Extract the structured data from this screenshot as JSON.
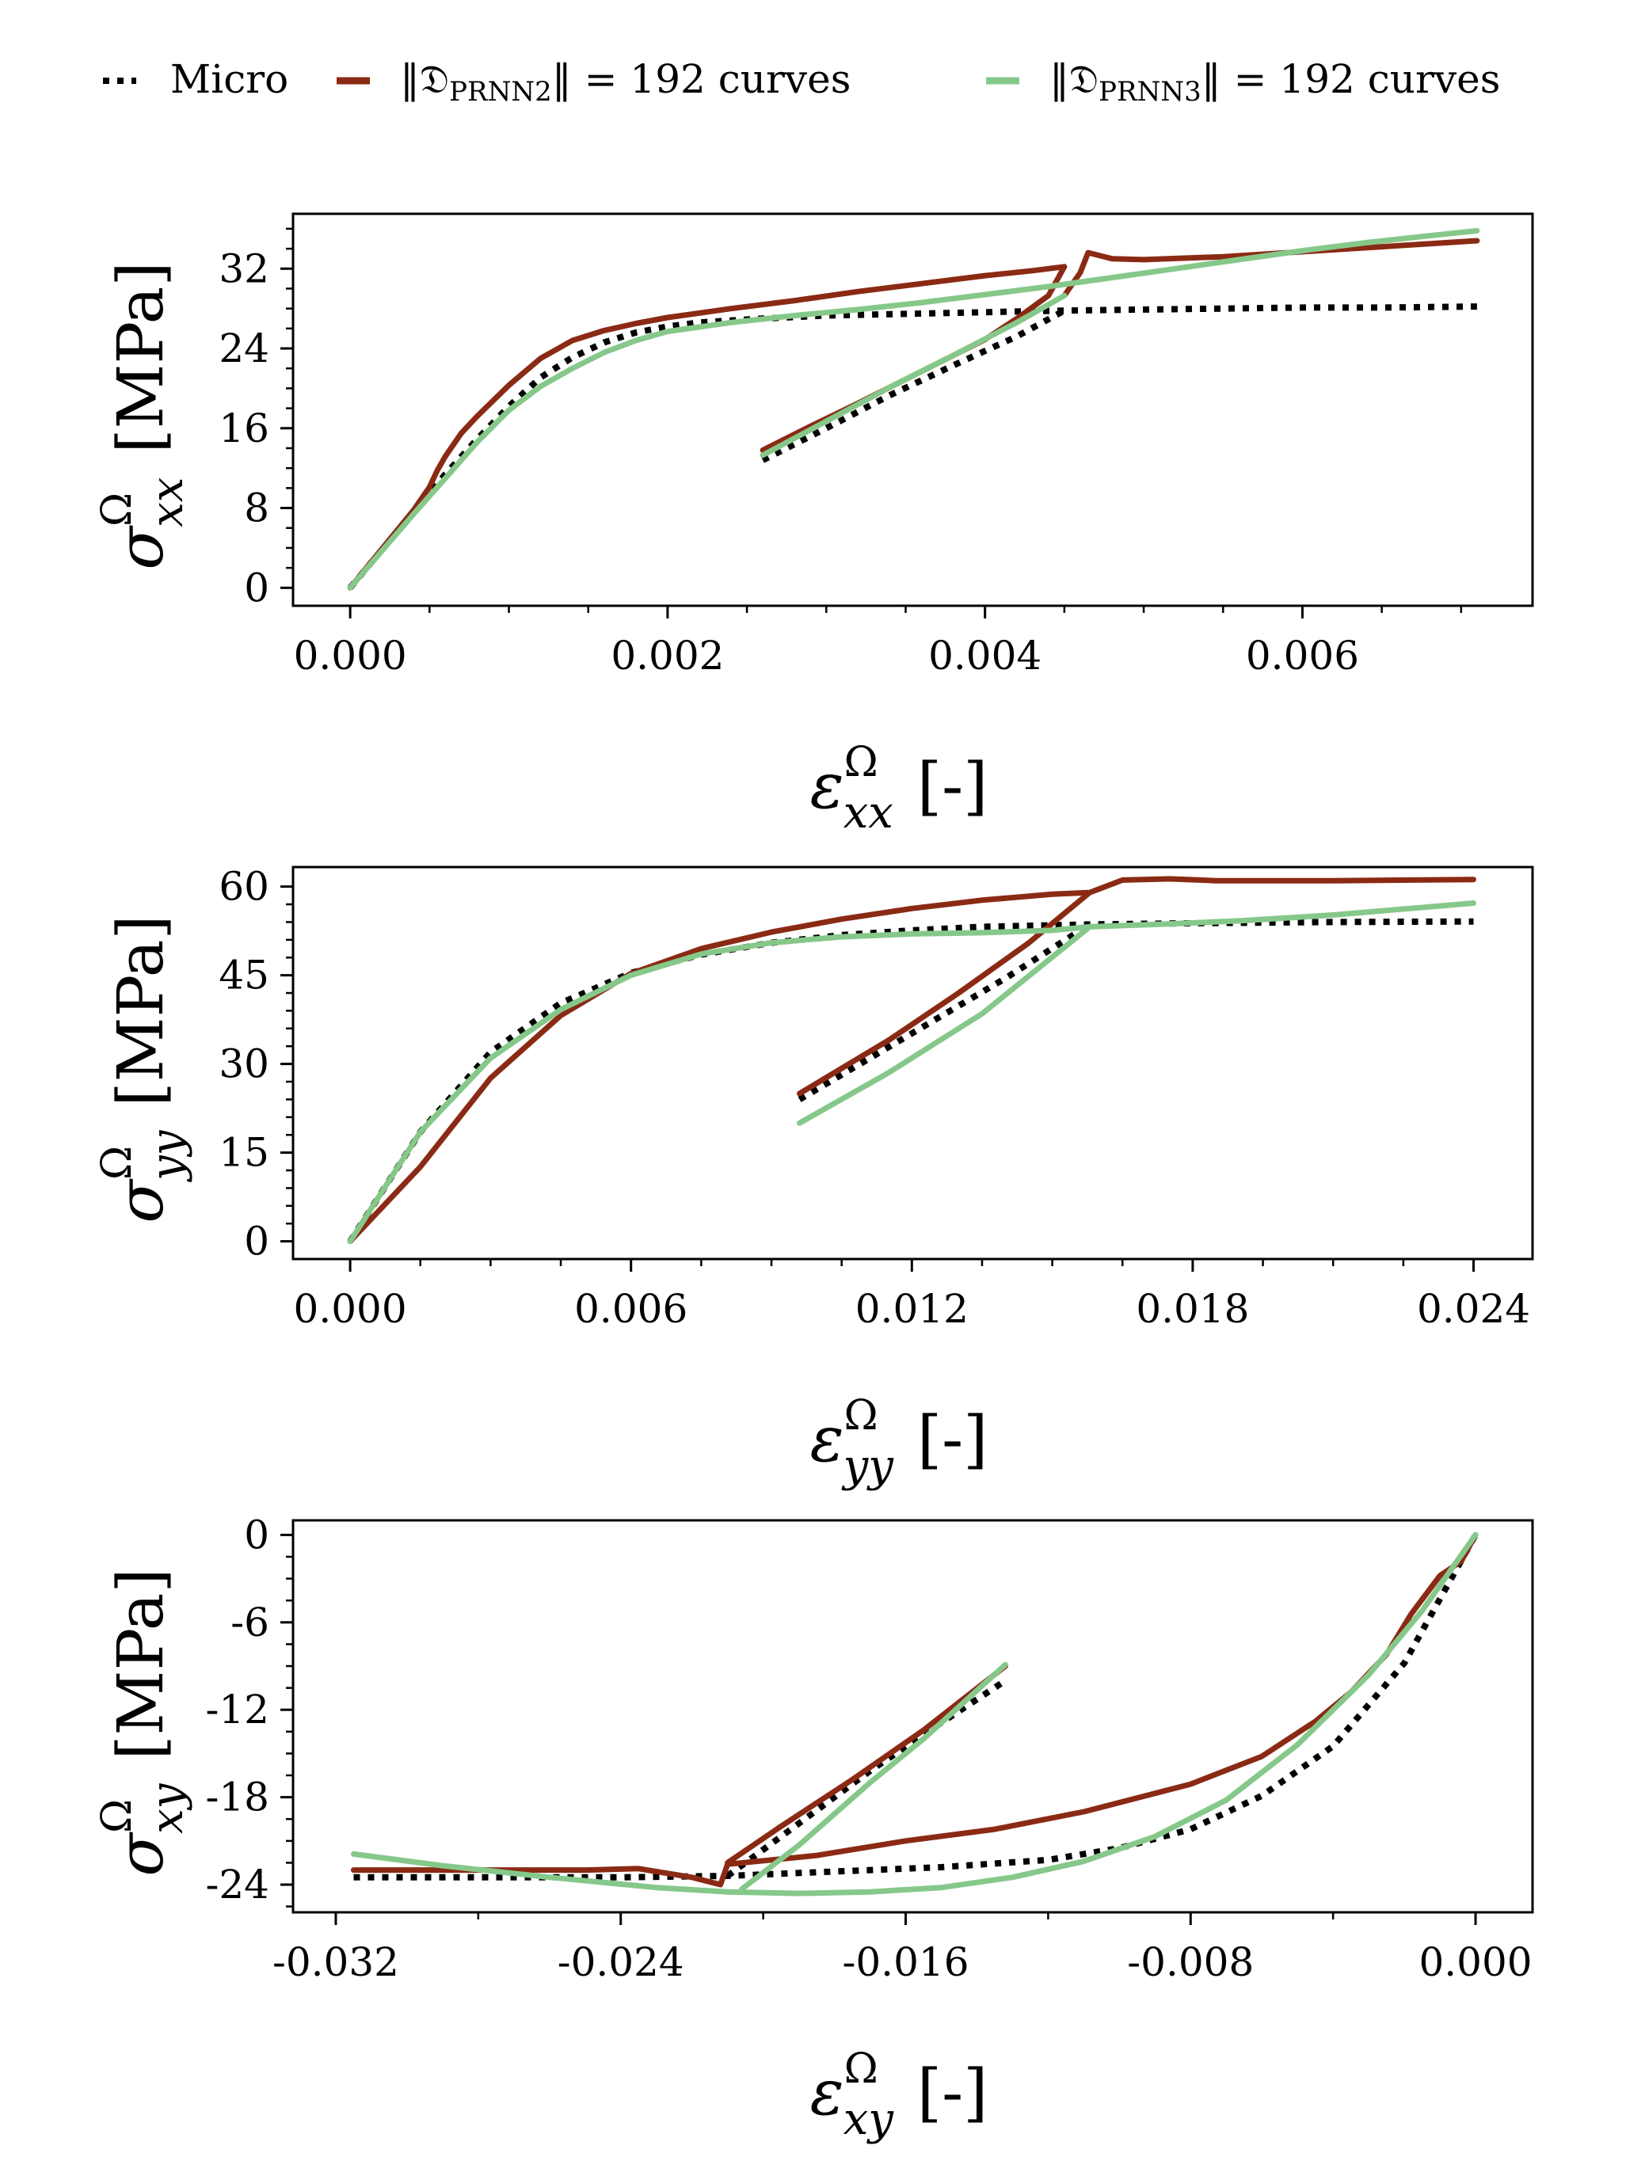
{
  "legend": {
    "entries": [
      {
        "name": "micro",
        "label": "Micro",
        "color": "#000000",
        "style": "dotted"
      },
      {
        "name": "prnn2",
        "label": "‖𝔇PRNN₂‖ = 192 curves",
        "label_main": "‖𝔇",
        "label_sub": "PRNN",
        "label_sub_index": "2",
        "label_tail": "‖ = 192 curves",
        "color": "#8B2A14",
        "style": "solid"
      },
      {
        "name": "prnn3",
        "label": "‖𝔇PRNN₃‖ = 192 curves",
        "label_main": "‖𝔇",
        "label_sub": "PRNN",
        "label_sub_index": "3",
        "label_tail": "‖ = 192 curves",
        "color": "#86C88A",
        "style": "solid"
      }
    ]
  },
  "chart_data": [
    {
      "type": "line",
      "id": "xx",
      "xlabel": "εxxΩ [-]",
      "xlabel_symbol": "ε",
      "xlabel_sub": "xx",
      "xlabel_sup": "Ω",
      "xlabel_unit": "[-]",
      "ylabel": "σxxΩ [MPa]",
      "ylabel_symbol": "σ",
      "ylabel_sub": "xx",
      "ylabel_sup": "Ω",
      "ylabel_unit": "[MPa]",
      "xlim": [
        -0.00036,
        0.00745
      ],
      "ylim": [
        -1.8,
        37.5
      ],
      "xticks": [
        0.0,
        0.002,
        0.004,
        0.006
      ],
      "xtick_labels": [
        "0.000",
        "0.002",
        "0.004",
        "0.006"
      ],
      "xminor": [
        -0.0005,
        0.0005,
        0.001,
        0.0015,
        0.0025,
        0.003,
        0.0035,
        0.0045,
        0.005,
        0.0055,
        0.0065,
        0.007
      ],
      "yticks": [
        0,
        8,
        16,
        24,
        32
      ],
      "ytick_labels": [
        "0",
        "8",
        "16",
        "24",
        "32"
      ],
      "yminor": [
        2,
        4,
        6,
        10,
        12,
        14,
        18,
        20,
        22,
        26,
        28,
        30,
        34,
        36
      ],
      "series": [
        {
          "name": "Micro",
          "legend": "micro",
          "x": [
            0,
            0.0002,
            0.0004,
            0.0006,
            0.0008,
            0.001,
            0.0012,
            0.0014,
            0.0016,
            0.0018,
            0.002,
            0.0022,
            0.0026,
            0.003,
            0.0036,
            0.0042,
            0.0045,
            0.005,
            0.0055,
            0.006,
            0.0065,
            0.0071,
            null,
            0.0026,
            0.003,
            0.0034,
            0.0038,
            0.0042,
            0.0045
          ],
          "y": [
            0,
            3.8,
            7.6,
            11.4,
            14.9,
            18.2,
            21.1,
            23.1,
            24.6,
            25.6,
            26.2,
            26.6,
            27.0,
            27.3,
            27.5,
            27.7,
            27.8,
            27.9,
            28.0,
            28.1,
            28.1,
            28.2,
            null,
            12.8,
            16.0,
            19.3,
            22.3,
            25.2,
            27.8
          ]
        },
        {
          "name": "PRNN2",
          "legend": "prnn2",
          "x": [
            0,
            0.0002,
            0.0004,
            0.0005,
            0.00055,
            0.0006,
            0.0007,
            0.0008,
            0.001,
            0.0012,
            0.0014,
            0.0016,
            0.0018,
            0.002,
            0.0024,
            0.0028,
            0.0032,
            0.0036,
            0.004,
            0.0043,
            0.0045,
            0.0044,
            0.0042,
            0.004,
            0.0036,
            0.0032,
            0.0029,
            0.0026,
            null,
            0.0045,
            0.0046,
            0.00465,
            0.0048,
            0.005,
            0.0055,
            0.006,
            0.0065,
            0.0071
          ],
          "y": [
            0,
            3.9,
            7.8,
            10.1,
            11.8,
            13.2,
            15.5,
            17.2,
            20.3,
            23.0,
            24.8,
            25.8,
            26.5,
            27.1,
            28.0,
            28.8,
            29.7,
            30.5,
            31.3,
            31.8,
            32.2,
            29.3,
            27.0,
            24.9,
            21.7,
            18.5,
            16.2,
            13.8,
            null,
            29.3,
            31.6,
            33.6,
            33.0,
            32.9,
            33.2,
            33.7,
            34.2,
            34.8
          ]
        },
        {
          "name": "PRNN3",
          "legend": "prnn3",
          "x": [
            0,
            0.0002,
            0.0004,
            0.0006,
            0.0008,
            0.001,
            0.0012,
            0.0014,
            0.0016,
            0.0018,
            0.002,
            0.0024,
            0.0028,
            0.0032,
            0.0036,
            0.004,
            0.0044,
            0.0048,
            0.0052,
            0.0056,
            0.006,
            0.0064,
            0.0068,
            0.0071,
            null,
            0.0026,
            0.003,
            0.0034,
            0.0038,
            0.0042,
            0.0045
          ],
          "y": [
            0,
            3.7,
            7.4,
            11.0,
            14.6,
            17.8,
            20.2,
            22.0,
            23.6,
            24.8,
            25.7,
            26.6,
            27.3,
            27.9,
            28.6,
            29.4,
            30.2,
            31.1,
            32.0,
            32.9,
            33.8,
            34.6,
            35.3,
            35.8,
            null,
            13.3,
            16.7,
            20.1,
            23.3,
            26.6,
            29.3
          ]
        }
      ]
    },
    {
      "type": "line",
      "id": "yy",
      "xlabel": "εyyΩ [-]",
      "xlabel_symbol": "ε",
      "xlabel_sub": "yy",
      "xlabel_sup": "Ω",
      "xlabel_unit": "[-]",
      "ylabel": "σyyΩ [MPa]",
      "ylabel_symbol": "σ",
      "ylabel_sub": "yy",
      "ylabel_sup": "Ω",
      "ylabel_unit": "[MPa]",
      "xlim": [
        -0.00122,
        0.02526
      ],
      "ylim": [
        -3.0,
        63.3
      ],
      "xticks": [
        0.0,
        0.006,
        0.012,
        0.018,
        0.024
      ],
      "xtick_labels": [
        "0.000",
        "0.006",
        "0.012",
        "0.018",
        "0.024"
      ],
      "xminor": [
        0.0015,
        0.003,
        0.0045,
        0.0075,
        0.009,
        0.0105,
        0.0135,
        0.015,
        0.0165,
        0.0195,
        0.021,
        0.0225
      ],
      "yticks": [
        0,
        15,
        30,
        45,
        60
      ],
      "ytick_labels": [
        "0",
        "15",
        "30",
        "45",
        "60"
      ],
      "yminor": [
        3,
        6,
        9,
        12,
        18,
        21,
        24,
        27,
        33,
        36,
        39,
        42,
        48,
        51,
        54,
        57
      ],
      "series": [
        {
          "name": "Micro",
          "legend": "micro",
          "x": [
            0,
            0.0015,
            0.003,
            0.0045,
            0.006,
            0.0075,
            0.009,
            0.0105,
            0.012,
            0.0135,
            0.0158,
            0.018,
            0.021,
            0.024,
            null,
            0.0096,
            0.011,
            0.0125,
            0.014,
            0.0158
          ],
          "y": [
            0,
            18.5,
            32.0,
            40.3,
            45.4,
            48.5,
            50.5,
            51.8,
            52.6,
            53.2,
            53.6,
            53.8,
            54.0,
            54.1,
            null,
            24.0,
            30.5,
            37.5,
            44.5,
            53.6
          ]
        },
        {
          "name": "PRNN2",
          "legend": "prnn2",
          "x": [
            0,
            0.0015,
            0.003,
            0.0045,
            0.006,
            0.0075,
            0.009,
            0.0105,
            0.012,
            0.0135,
            0.015,
            0.0158,
            0.0145,
            0.013,
            0.0115,
            0.0096,
            null,
            0.0158,
            0.0165,
            0.0175,
            0.0185,
            0.021,
            0.024
          ],
          "y": [
            0,
            12.6,
            27.6,
            38.2,
            45.3,
            49.5,
            52.3,
            54.5,
            56.3,
            57.7,
            58.7,
            59.0,
            50.5,
            42.0,
            34.0,
            25.0,
            null,
            59.0,
            61.1,
            61.3,
            61.0,
            61.0,
            61.2
          ]
        },
        {
          "name": "PRNN3",
          "legend": "prnn3",
          "x": [
            0,
            0.0015,
            0.003,
            0.0045,
            0.006,
            0.0075,
            0.009,
            0.0105,
            0.012,
            0.0135,
            0.015,
            0.0158,
            0.0175,
            0.019,
            0.021,
            0.024,
            null,
            0.0096,
            0.0115,
            0.0135,
            0.0158
          ],
          "y": [
            0,
            18.5,
            31.0,
            39.2,
            45.0,
            48.6,
            50.5,
            51.5,
            52.0,
            52.2,
            52.6,
            53.2,
            53.7,
            54.2,
            55.2,
            57.2,
            null,
            20.0,
            28.5,
            38.5,
            53.2
          ]
        }
      ]
    },
    {
      "type": "line",
      "id": "xy",
      "xlabel": "εxyΩ [-]",
      "xlabel_symbol": "ε",
      "xlabel_sub": "xy",
      "xlabel_sup": "Ω",
      "xlabel_unit": "[-]",
      "ylabel": "σxyΩ [MPa]",
      "ylabel_symbol": "σ",
      "ylabel_sub": "xy",
      "ylabel_sup": "Ω",
      "ylabel_unit": "[MPa]",
      "xlim": [
        -0.0332,
        0.0016
      ],
      "ylim": [
        -25.9,
        1.0
      ],
      "xticks": [
        -0.032,
        -0.024,
        -0.016,
        -0.008,
        0.0
      ],
      "xtick_labels": [
        "-0.032",
        "-0.024",
        "-0.016",
        "-0.008",
        "0.000"
      ],
      "xminor": [
        -0.028,
        -0.02,
        -0.012,
        -0.004
      ],
      "yticks": [
        0,
        -6,
        -12,
        -18,
        -24
      ],
      "ytick_labels": [
        "0",
        "-6",
        "-12",
        "-18",
        "-24"
      ],
      "yminor": [
        -1.5,
        -3,
        -4.5,
        -7.5,
        -9,
        -10.5,
        -13.5,
        -15,
        -16.5,
        -19.5,
        -21,
        -22.5,
        -25.5
      ],
      "series": [
        {
          "name": "Micro",
          "legend": "micro",
          "x": [
            -0.0315,
            -0.028,
            -0.024,
            -0.021,
            -0.018,
            -0.015,
            -0.012,
            -0.01,
            -0.008,
            -0.006,
            -0.004,
            -0.002,
            0,
            null,
            -0.021,
            -0.019,
            -0.017,
            -0.0155,
            -0.0132
          ],
          "y": [
            -23.5,
            -23.5,
            -23.5,
            -23.4,
            -23.1,
            -22.8,
            -22.3,
            -21.5,
            -20.2,
            -17.9,
            -14.5,
            -8.8,
            0,
            null,
            -23.4,
            -19.8,
            -16.2,
            -13.7,
            -10.0
          ]
        },
        {
          "name": "PRNN2",
          "legend": "prnn2",
          "x": [
            -0.0315,
            -0.028,
            -0.025,
            -0.0235,
            -0.022,
            -0.0212,
            -0.021,
            -0.0185,
            -0.016,
            -0.0135,
            -0.011,
            -0.008,
            -0.006,
            -0.0045,
            -0.0035,
            -0.0025,
            -0.0018,
            -0.001,
            -0.0004,
            0,
            null,
            -0.0132,
            -0.0155,
            -0.0175,
            -0.0195,
            -0.021
          ],
          "y": [
            -23.0,
            -23.0,
            -23.0,
            -22.9,
            -23.5,
            -24.0,
            -22.6,
            -22.0,
            -21.0,
            -20.2,
            -19.0,
            -17.1,
            -15.2,
            -12.8,
            -10.8,
            -8.2,
            -5.4,
            -2.8,
            -1.8,
            0,
            null,
            -9.0,
            -13.4,
            -16.8,
            -20.0,
            -22.5
          ]
        },
        {
          "name": "PRNN3",
          "legend": "prnn3",
          "x": [
            -0.0315,
            -0.029,
            -0.026,
            -0.023,
            -0.021,
            -0.019,
            -0.017,
            -0.015,
            -0.013,
            -0.011,
            -0.009,
            -0.007,
            -0.005,
            -0.003,
            -0.0015,
            0,
            null,
            -0.0206,
            -0.019,
            -0.017,
            -0.0155,
            -0.0132
          ],
          "y": [
            -21.9,
            -22.7,
            -23.5,
            -24.2,
            -24.5,
            -24.6,
            -24.5,
            -24.2,
            -23.5,
            -22.4,
            -20.7,
            -18.2,
            -14.4,
            -9.6,
            -5.2,
            0,
            null,
            -24.3,
            -21.3,
            -17.0,
            -14.0,
            -8.9
          ]
        }
      ]
    }
  ]
}
